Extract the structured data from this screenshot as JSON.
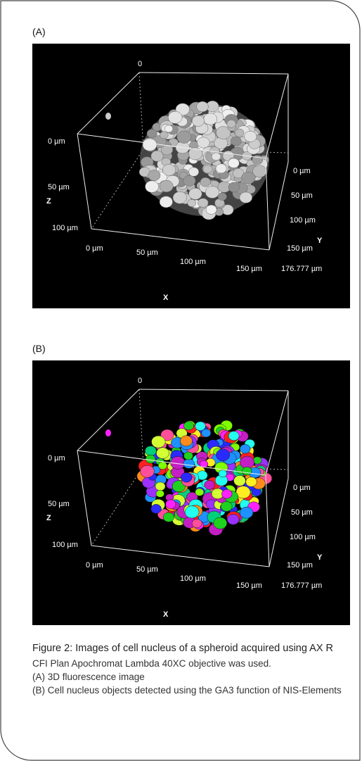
{
  "figure": {
    "panels": [
      {
        "label": "(A)",
        "image": {
          "top_label": "0",
          "z_labels": [
            "0 µm",
            "50 µm",
            "100 µm"
          ],
          "z_title": "Z",
          "x_labels": [
            "0 µm",
            "50 µm",
            "100 µm",
            "150 µm",
            "176.777 µm"
          ],
          "x_title": "X",
          "y_labels": [
            "0 µm",
            "50 µm",
            "100 µm",
            "150 µm"
          ],
          "y_title": "Y"
        }
      },
      {
        "label": "(B)",
        "image": {
          "top_label": "0",
          "z_labels": [
            "0 µm",
            "50 µm",
            "100 µm"
          ],
          "z_title": "Z",
          "x_labels": [
            "0 µm",
            "50 µm",
            "100 µm",
            "150 µm",
            "176.777 µm"
          ],
          "x_title": "X",
          "y_labels": [
            "0 µm",
            "50 µm",
            "100 µm",
            "150 µm"
          ],
          "y_title": "Y"
        }
      }
    ]
  },
  "caption": {
    "title": "Figure 2: Images of cell nucleus of a spheroid acquired using AX R",
    "lines": [
      "CFI Plan Apochromat Lambda 40XC objective was used.",
      "(A) 3D fluorescence image",
      "(B) Cell nucleus objects detected using the GA3 function of NIS-Elements"
    ]
  }
}
